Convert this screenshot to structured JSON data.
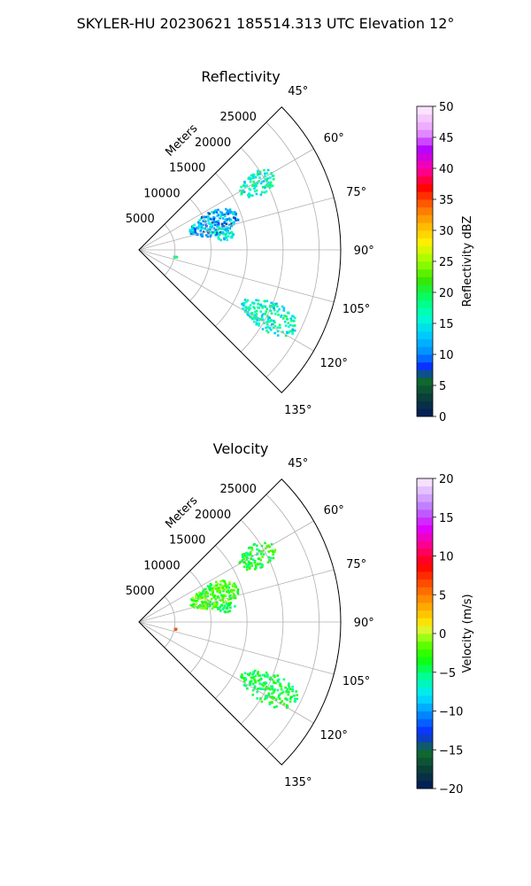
{
  "figure": {
    "suptitle": "SKYLER-HU  20230621  185514.313 UTC Elevation 12°"
  },
  "chart_data": [
    {
      "type": "polar-sector",
      "title": "Reflectivity",
      "radial_label": "Meters",
      "r_ticks": [
        5000,
        10000,
        15000,
        20000,
        25000
      ],
      "r_lim": [
        0,
        28000
      ],
      "theta_range_deg": [
        45,
        135
      ],
      "theta_ticks_deg": [
        45,
        60,
        75,
        90,
        105,
        120,
        135
      ],
      "theta_tick_labels": [
        "45°",
        "60°",
        "75°",
        "90°",
        "105°",
        "120°",
        "135°"
      ],
      "grid": true,
      "colorbar": {
        "label": "Reflectivity dBZ",
        "range": [
          0,
          50
        ],
        "ticks": [
          0,
          5,
          10,
          15,
          20,
          25,
          30,
          35,
          40,
          45,
          50
        ],
        "tick_labels": [
          "0",
          "5",
          "10",
          "15",
          "20",
          "25",
          "30",
          "35",
          "40",
          "45",
          "50"
        ],
        "levels": 40,
        "colormap": "pyart_NWSRef"
      },
      "echo_regions": [
        {
          "azimuth_deg": [
            56,
            66
          ],
          "range_m": [
            16000,
            21500
          ],
          "value_range": [
            12,
            20
          ],
          "typical": 17
        },
        {
          "azimuth_deg": [
            62,
            80
          ],
          "range_m": [
            7500,
            14500
          ],
          "value_range": [
            7,
            17
          ],
          "typical": 13
        },
        {
          "azimuth_deg": [
            78,
            84
          ],
          "range_m": [
            11000,
            13500
          ],
          "value_range": [
            12,
            18
          ],
          "typical": 15
        },
        {
          "azimuth_deg": [
            100,
            102
          ],
          "range_m": [
            5000,
            5400
          ],
          "value_range": [
            17,
            20
          ],
          "typical": 18
        },
        {
          "azimuth_deg": [
            111,
            123
          ],
          "range_m": [
            16000,
            24500
          ],
          "value_range": [
            12,
            20
          ],
          "typical": 16
        }
      ]
    },
    {
      "type": "polar-sector",
      "title": "Velocity",
      "radial_label": "Meters",
      "r_ticks": [
        5000,
        10000,
        15000,
        20000,
        25000
      ],
      "r_lim": [
        0,
        28000
      ],
      "theta_range_deg": [
        45,
        135
      ],
      "theta_ticks_deg": [
        45,
        60,
        75,
        90,
        105,
        120,
        135
      ],
      "theta_tick_labels": [
        "45°",
        "60°",
        "75°",
        "90°",
        "105°",
        "120°",
        "135°"
      ],
      "grid": true,
      "colorbar": {
        "label": "Velocity (m/s)",
        "range": [
          -20,
          20
        ],
        "ticks": [
          -20,
          -15,
          -10,
          -5,
          0,
          5,
          10,
          15,
          20
        ],
        "tick_labels": [
          "−20",
          "−15",
          "−10",
          "−5",
          "0",
          "5",
          "10",
          "15",
          "20"
        ],
        "levels": 40,
        "colormap": "pyart_BuDRd18"
      },
      "echo_regions": [
        {
          "azimuth_deg": [
            56,
            66
          ],
          "range_m": [
            16000,
            21500
          ],
          "value_range": [
            -6,
            -1
          ],
          "typical": -4
        },
        {
          "azimuth_deg": [
            62,
            80
          ],
          "range_m": [
            7500,
            14500
          ],
          "value_range": [
            -5,
            0
          ],
          "typical": -3
        },
        {
          "azimuth_deg": [
            78,
            84
          ],
          "range_m": [
            11000,
            13500
          ],
          "value_range": [
            -6,
            -3
          ],
          "typical": -4
        },
        {
          "azimuth_deg": [
            100,
            102
          ],
          "range_m": [
            5000,
            5400
          ],
          "value_range": [
            6,
            8
          ],
          "typical": 7
        },
        {
          "azimuth_deg": [
            111,
            123
          ],
          "range_m": [
            16000,
            24500
          ],
          "value_range": [
            -6,
            -2
          ],
          "typical": -4
        }
      ]
    }
  ]
}
